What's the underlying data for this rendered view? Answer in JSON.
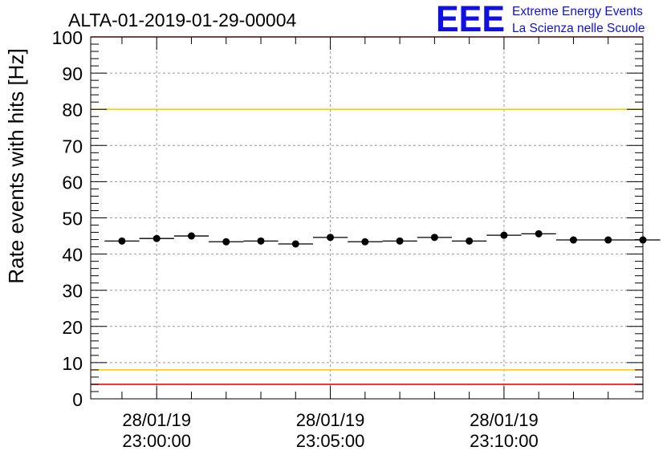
{
  "logo": {
    "letters": "EEE",
    "line1": "Extreme Energy Events",
    "line2": "La Scienza nelle Scuole",
    "color": "#1010e0"
  },
  "chart_data": {
    "type": "scatter",
    "title": "ALTA-01-2019-01-29-00004",
    "xlabel": "",
    "ylabel": "Rate events with hits [Hz]",
    "ylim": [
      0,
      100
    ],
    "yticks": [
      0,
      10,
      20,
      30,
      40,
      50,
      60,
      70,
      80,
      90,
      100
    ],
    "x_unit": "minutes after 28/01/19 22:59:00",
    "xlim": [
      -0.9,
      15.0
    ],
    "xtick_minutes": [
      1,
      6,
      11
    ],
    "xtick_labels": [
      [
        "28/01/19",
        "23:00:00"
      ],
      [
        "28/01/19",
        "23:05:00"
      ],
      [
        "28/01/19",
        "23:10:00"
      ]
    ],
    "bin_width": 1,
    "grid": true,
    "series": [
      {
        "name": "rate",
        "x": [
          0,
          1,
          2,
          3,
          4,
          5,
          6,
          7,
          8,
          9,
          10,
          11,
          12,
          13,
          14,
          15
        ],
        "values": [
          43.6,
          44.3,
          45.0,
          43.4,
          43.6,
          42.8,
          44.6,
          43.4,
          43.6,
          44.6,
          43.6,
          45.2,
          45.6,
          43.9,
          43.9,
          43.9
        ]
      }
    ],
    "reference_lines": [
      {
        "name": "red-limit-high",
        "value": 100,
        "color": "#ff0000"
      },
      {
        "name": "yellow-limit-high",
        "value": 80,
        "color": "#ffcc00"
      },
      {
        "name": "yellow-limit-low",
        "value": 8,
        "color": "#ffcc00"
      },
      {
        "name": "red-limit-low",
        "value": 4,
        "color": "#ff0000"
      }
    ]
  }
}
